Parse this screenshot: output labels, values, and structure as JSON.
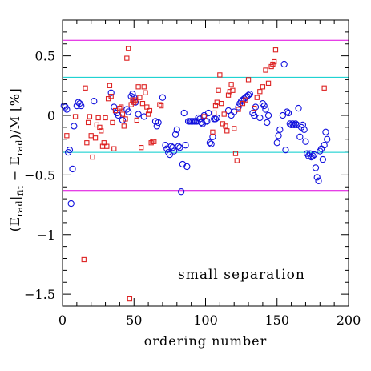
{
  "chart_data": {
    "type": "scatter",
    "title": "",
    "xlabel": "ordering number",
    "ylabel": "(E_rad|_fit − E_rad)/M [%]",
    "ylabel_parts": {
      "open": "(E",
      "rad": "rad",
      "bar": "|",
      "fit": "fit",
      "minus": " − E",
      "rad2": "rad",
      "close": ")/M [%]"
    },
    "xlim": [
      0,
      200
    ],
    "ylim": [
      -1.6,
      0.8
    ],
    "x_ticks": [
      0,
      50,
      100,
      150,
      200
    ],
    "x_tick_labels": [
      "0",
      "50",
      "100",
      "150",
      "200"
    ],
    "y_ticks": [
      -1.5,
      -1,
      -0.5,
      0,
      0.5
    ],
    "y_tick_labels": [
      "−1.5",
      "−1",
      "−0.5",
      "0",
      "0.5"
    ],
    "annotation": "small separation",
    "reference_lines": [
      {
        "y": 0.63,
        "color": "#dd00dd"
      },
      {
        "y": 0.32,
        "color": "#00cccc"
      },
      {
        "y": -0.31,
        "color": "#00cccc"
      },
      {
        "y": -0.63,
        "color": "#dd00dd"
      }
    ],
    "series": [
      {
        "marker": "circle",
        "color": "#1111dd",
        "points": [
          [
            1,
            0.08
          ],
          [
            2,
            0.07
          ],
          [
            3,
            0.05
          ],
          [
            4,
            -0.31
          ],
          [
            5,
            -0.29
          ],
          [
            6,
            -0.74
          ],
          [
            7,
            -0.45
          ],
          [
            8,
            -0.09
          ],
          [
            10,
            0.08
          ],
          [
            11,
            0.11
          ],
          [
            12,
            0.1
          ],
          [
            13,
            0.08
          ],
          [
            22,
            0.12
          ],
          [
            34,
            0.19
          ],
          [
            36,
            0.07
          ],
          [
            38,
            0.02
          ],
          [
            39,
            0.0
          ],
          [
            42,
            -0.04
          ],
          [
            45,
            0.05
          ],
          [
            46,
            0.03
          ],
          [
            48,
            0.16
          ],
          [
            49,
            0.18
          ],
          [
            50,
            0.15
          ],
          [
            51,
            0.11
          ],
          [
            53,
            0.01
          ],
          [
            57,
            -0.01
          ],
          [
            65,
            -0.05
          ],
          [
            66,
            -0.09
          ],
          [
            67,
            -0.06
          ],
          [
            70,
            0.15
          ],
          [
            72,
            -0.25
          ],
          [
            73,
            -0.28
          ],
          [
            74,
            -0.31
          ],
          [
            75,
            -0.33
          ],
          [
            76,
            -0.26
          ],
          [
            77,
            -0.27
          ],
          [
            78,
            -0.3
          ],
          [
            79,
            -0.16
          ],
          [
            80,
            -0.12
          ],
          [
            81,
            -0.26
          ],
          [
            82,
            -0.27
          ],
          [
            83,
            -0.64
          ],
          [
            84,
            -0.41
          ],
          [
            85,
            0.02
          ],
          [
            86,
            -0.25
          ],
          [
            87,
            -0.43
          ],
          [
            88,
            -0.05
          ],
          [
            89,
            -0.05
          ],
          [
            90,
            -0.05
          ],
          [
            91,
            -0.05
          ],
          [
            92,
            -0.05
          ],
          [
            93,
            -0.05
          ],
          [
            94,
            -0.05
          ],
          [
            95,
            -0.02
          ],
          [
            96,
            -0.03
          ],
          [
            97,
            -0.06
          ],
          [
            98,
            -0.07
          ],
          [
            99,
            0.0
          ],
          [
            100,
            -0.05
          ],
          [
            101,
            -0.05
          ],
          [
            102,
            0.02
          ],
          [
            103,
            -0.23
          ],
          [
            104,
            -0.24
          ],
          [
            105,
            -0.18
          ],
          [
            106,
            -0.03
          ],
          [
            107,
            -0.03
          ],
          [
            108,
            -0.02
          ],
          [
            116,
            0.04
          ],
          [
            118,
            0.0
          ],
          [
            120,
            0.03
          ],
          [
            123,
            0.07
          ],
          [
            124,
            0.1
          ],
          [
            125,
            0.12
          ],
          [
            126,
            0.13
          ],
          [
            127,
            0.14
          ],
          [
            128,
            0.15
          ],
          [
            129,
            0.16
          ],
          [
            130,
            0.17
          ],
          [
            131,
            0.18
          ],
          [
            133,
            0.02
          ],
          [
            134,
            0.0
          ],
          [
            135,
            0.07
          ],
          [
            138,
            -0.02
          ],
          [
            140,
            0.1
          ],
          [
            141,
            0.08
          ],
          [
            142,
            0.05
          ],
          [
            143,
            -0.06
          ],
          [
            144,
            0.0
          ],
          [
            150,
            -0.23
          ],
          [
            151,
            -0.17
          ],
          [
            152,
            -0.12
          ],
          [
            154,
            0.0
          ],
          [
            155,
            0.43
          ],
          [
            156,
            -0.29
          ],
          [
            157,
            0.03
          ],
          [
            158,
            0.02
          ],
          [
            159,
            -0.07
          ],
          [
            160,
            -0.08
          ],
          [
            161,
            -0.07
          ],
          [
            162,
            -0.08
          ],
          [
            163,
            -0.07
          ],
          [
            164,
            -0.08
          ],
          [
            165,
            0.06
          ],
          [
            166,
            -0.18
          ],
          [
            167,
            -0.1
          ],
          [
            168,
            -0.08
          ],
          [
            169,
            -0.12
          ],
          [
            170,
            -0.22
          ],
          [
            171,
            -0.32
          ],
          [
            172,
            -0.34
          ],
          [
            173,
            -0.32
          ],
          [
            174,
            -0.35
          ],
          [
            175,
            -0.34
          ],
          [
            176,
            -0.33
          ],
          [
            177,
            -0.44
          ],
          [
            178,
            -0.52
          ],
          [
            179,
            -0.55
          ],
          [
            180,
            -0.3
          ],
          [
            181,
            -0.28
          ],
          [
            182,
            -0.37
          ],
          [
            183,
            -0.25
          ],
          [
            184,
            -0.14
          ],
          [
            185,
            -0.2
          ]
        ]
      },
      {
        "marker": "square",
        "color": "#dd2222",
        "points": [
          [
            3,
            -0.17
          ],
          [
            9,
            -0.01
          ],
          [
            15,
            -1.21
          ],
          [
            16,
            0.23
          ],
          [
            17,
            -0.23
          ],
          [
            18,
            -0.06
          ],
          [
            19,
            -0.01
          ],
          [
            20,
            -0.17
          ],
          [
            21,
            -0.35
          ],
          [
            23,
            -0.19
          ],
          [
            24,
            -0.08
          ],
          [
            25,
            -0.02
          ],
          [
            26,
            -0.1
          ],
          [
            27,
            -0.13
          ],
          [
            28,
            -0.26
          ],
          [
            29,
            -0.23
          ],
          [
            30,
            -0.02
          ],
          [
            31,
            -0.26
          ],
          [
            32,
            0.14
          ],
          [
            33,
            0.25
          ],
          [
            34,
            0.16
          ],
          [
            35,
            -0.06
          ],
          [
            36,
            -0.28
          ],
          [
            37,
            0.04
          ],
          [
            40,
            0.06
          ],
          [
            41,
            0.07
          ],
          [
            42,
            0.01
          ],
          [
            43,
            -0.09
          ],
          [
            44,
            -0.03
          ],
          [
            45,
            0.48
          ],
          [
            46,
            0.56
          ],
          [
            47,
            -1.54
          ],
          [
            48,
            0.09
          ],
          [
            49,
            0.13
          ],
          [
            50,
            0.11
          ],
          [
            51,
            0.13
          ],
          [
            52,
            -0.04
          ],
          [
            53,
            0.24
          ],
          [
            54,
            0.15
          ],
          [
            55,
            -0.27
          ],
          [
            56,
            0.1
          ],
          [
            57,
            0.24
          ],
          [
            58,
            0.19
          ],
          [
            59,
            0.07
          ],
          [
            60,
            0.01
          ],
          [
            61,
            0.04
          ],
          [
            62,
            -0.23
          ],
          [
            63,
            -0.22
          ],
          [
            64,
            -0.22
          ],
          [
            68,
            0.09
          ],
          [
            69,
            0.08
          ],
          [
            99,
            -0.01
          ],
          [
            105,
            -0.14
          ],
          [
            106,
            0.02
          ],
          [
            107,
            0.08
          ],
          [
            108,
            0.11
          ],
          [
            109,
            0.21
          ],
          [
            110,
            0.34
          ],
          [
            111,
            0.1
          ],
          [
            112,
            -0.07
          ],
          [
            113,
            0.01
          ],
          [
            114,
            -0.09
          ],
          [
            115,
            -0.13
          ],
          [
            116,
            0.17
          ],
          [
            117,
            0.2
          ],
          [
            118,
            0.26
          ],
          [
            119,
            0.21
          ],
          [
            120,
            -0.11
          ],
          [
            121,
            -0.32
          ],
          [
            122,
            -0.38
          ],
          [
            123,
            0.05
          ],
          [
            126,
            0.1
          ],
          [
            128,
            0.13
          ],
          [
            130,
            0.3
          ],
          [
            134,
            0.06
          ],
          [
            136,
            0.15
          ],
          [
            138,
            0.2
          ],
          [
            140,
            0.24
          ],
          [
            142,
            0.38
          ],
          [
            144,
            0.27
          ],
          [
            146,
            0.41
          ],
          [
            147,
            0.43
          ],
          [
            148,
            0.45
          ],
          [
            149,
            0.55
          ],
          [
            183,
            0.23
          ]
        ]
      }
    ]
  }
}
